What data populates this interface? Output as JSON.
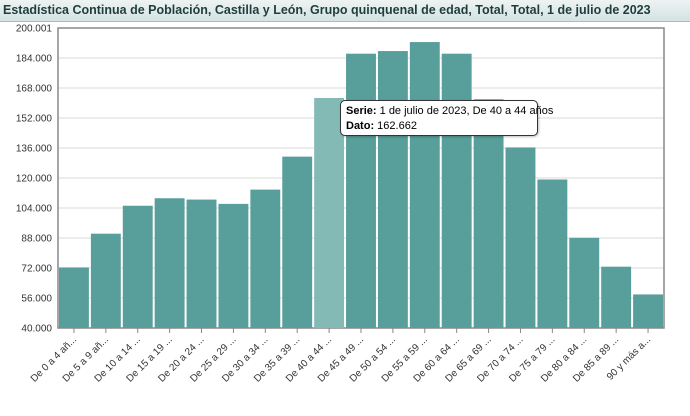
{
  "header": {
    "title": "Estadística Continua de Población, Castilla y León, Grupo quinquenal de edad, Total, Total, 1 de julio de 2023"
  },
  "tooltip": {
    "serie_label": "Serie:",
    "serie_value": "1 de julio de 2023, De 40 a 44 años",
    "dato_label": "Dato:",
    "dato_value": "162.662"
  },
  "colors": {
    "bar": "#589e9a",
    "bar_highlight": "#84bab6",
    "grid": "#d9d9d9"
  },
  "chart_data": {
    "type": "bar",
    "title": "Estadística Continua de Población, Castilla y León, Grupo quinquenal de edad, Total, Total, 1 de julio de 2023",
    "xlabel": "",
    "ylabel": "",
    "ylim": [
      40000,
      200001
    ],
    "ytick_values": [
      40000,
      56000,
      72000,
      88000,
      104000,
      120000,
      136000,
      152000,
      168000,
      184000,
      200001
    ],
    "ytick_labels": [
      "40.000",
      "56.000",
      "72.000",
      "88.000",
      "104.000",
      "120.000",
      "136.000",
      "152.000",
      "168.000",
      "184.000",
      "200.001"
    ],
    "grid": true,
    "highlighted_category": "De 40 a 44 ...",
    "categories": [
      "De 0 a 4 añ...",
      "De 5 a 9 añ...",
      "De 10 a 14 ...",
      "De 15 a 19 ...",
      "De 20 a 24 ...",
      "De 25 a 29 ...",
      "De 30 a 34 ...",
      "De 35 a 39 ...",
      "De 40 a 44 ...",
      "De 45 a 49 ...",
      "De 50 a 54 ...",
      "De 55 a 59 ...",
      "De 60 a 64 ...",
      "De 65 a 69 ...",
      "De 70 a 74 ...",
      "De 75 a 79 ...",
      "De 80 a 84 ...",
      "De 85 a 89 ...",
      "90 y más a..."
    ],
    "series": [
      {
        "values": [
          72300,
          90300,
          105200,
          109200,
          108500,
          106200,
          113800,
          131400,
          162662,
          186300,
          187700,
          192500,
          186300,
          162000,
          136300,
          119200,
          88100,
          72700,
          57900
        ]
      }
    ]
  }
}
